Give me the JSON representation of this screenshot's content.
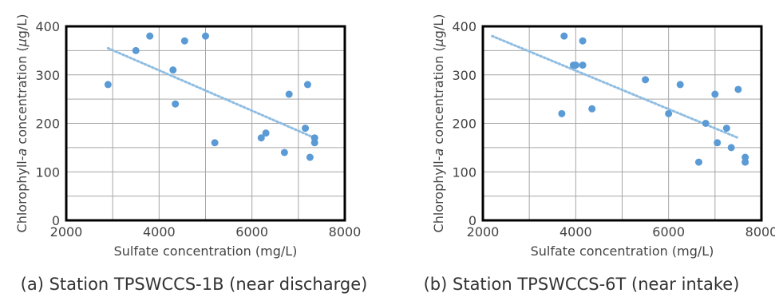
{
  "chart_data": [
    {
      "type": "scatter",
      "caption": "(a) Station TPSWCCS-1B (near discharge)",
      "xlabel": "Sulfate concentration (mg/L)",
      "ylabel_pre": "Chlorophyll-",
      "ylabel_italic": "a",
      "ylabel_post": " concentration (",
      "ylabel_mu": "µ",
      "ylabel_end": "g/L)",
      "xlim": [
        2000,
        8000
      ],
      "ylim": [
        0,
        400
      ],
      "xticks": [
        "2000",
        "4000",
        "6000",
        "8000"
      ],
      "yticks": [
        "0",
        "100",
        "200",
        "300",
        "400"
      ],
      "grid": true,
      "trendline": true,
      "series": [
        {
          "x": [
            2900,
            3500,
            3800,
            4300,
            4350,
            4550,
            5000,
            5200,
            6200,
            6300,
            6700,
            6800,
            7150,
            7200,
            7250,
            7350,
            7350
          ],
          "y": [
            280,
            350,
            380,
            310,
            240,
            370,
            380,
            160,
            170,
            180,
            140,
            260,
            190,
            280,
            130,
            170,
            160
          ]
        }
      ],
      "trend": {
        "x": [
          2900,
          7350
        ],
        "y": [
          355,
          170
        ]
      }
    },
    {
      "type": "scatter",
      "caption": "(b) Station TPSWCCS-6T (near intake)",
      "xlabel": "Sulfate concentration (mg/L)",
      "ylabel_pre": "Chlorophyll-",
      "ylabel_italic": "a",
      "ylabel_post": " concentration (",
      "ylabel_mu": "µ",
      "ylabel_end": "g/L)",
      "xlim": [
        2000,
        8000
      ],
      "ylim": [
        0,
        400
      ],
      "xticks": [
        "2000",
        "4000",
        "6000",
        "8000"
      ],
      "yticks": [
        "0",
        "100",
        "200",
        "300",
        "400"
      ],
      "grid": true,
      "trendline": true,
      "series": [
        {
          "x": [
            3700,
            3750,
            3950,
            4000,
            4150,
            4150,
            4350,
            5500,
            6000,
            6250,
            6650,
            6800,
            7000,
            7050,
            7250,
            7350,
            7500,
            7650,
            7650
          ],
          "y": [
            220,
            380,
            320,
            320,
            370,
            320,
            230,
            290,
            220,
            280,
            120,
            200,
            260,
            160,
            190,
            150,
            270,
            130,
            120
          ]
        }
      ],
      "trend": {
        "x": [
          2200,
          7500
        ],
        "y": [
          380,
          170
        ]
      }
    }
  ],
  "colors": {
    "point": "#5b9bd5",
    "trend": "#8fbde2",
    "grid": "#a6a6a6",
    "frame": "#000000"
  }
}
